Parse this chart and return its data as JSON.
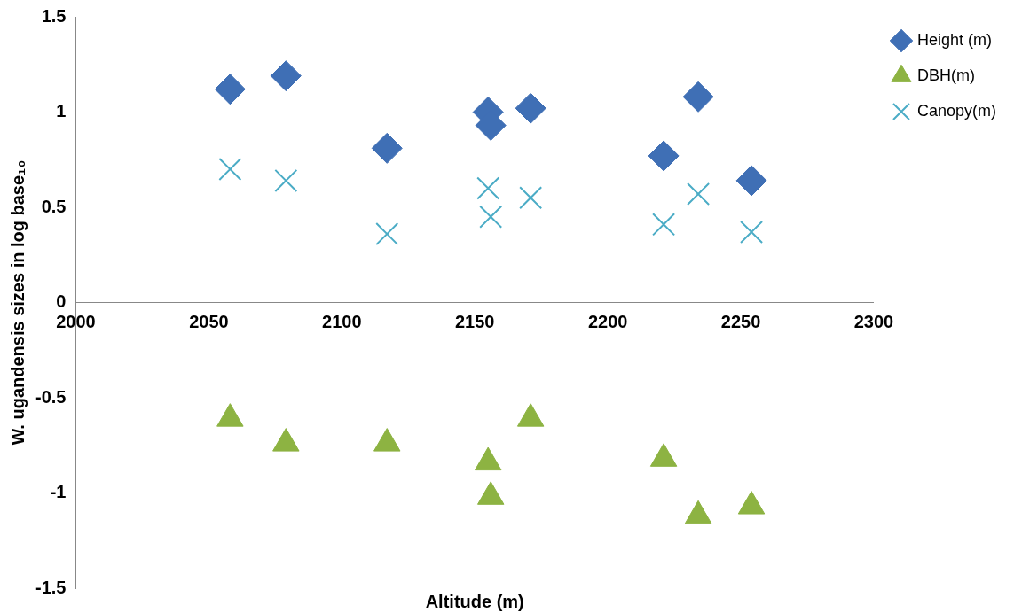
{
  "chart_data": {
    "type": "scatter",
    "xlabel": "Altitude (m)",
    "ylabel": "W. ugandensis sizes in log base₁₀",
    "xlim": [
      2000,
      2300
    ],
    "xticks": [
      2000,
      2050,
      2100,
      2150,
      2200,
      2250,
      2300
    ],
    "ylim": [
      -1.5,
      1.5
    ],
    "yticks": [
      -1.5,
      -1,
      -0.5,
      0,
      0.5,
      1,
      1.5
    ],
    "grid": false,
    "legend": "top right",
    "series": [
      {
        "name": "Height (m)",
        "color": "#3f6fb5",
        "marker": "diamond",
        "x": [
          2058,
          2079,
          2117,
          2155,
          2156,
          2171,
          2221,
          2234,
          2254
        ],
        "values": [
          1.12,
          1.19,
          0.81,
          1.0,
          0.93,
          1.02,
          0.77,
          1.08,
          0.64
        ]
      },
      {
        "name": "DBH(m)",
        "color": "#8db342",
        "marker": "triangle",
        "x": [
          2058,
          2079,
          2117,
          2155,
          2156,
          2171,
          2221,
          2234,
          2254
        ],
        "values": [
          -0.61,
          -0.74,
          -0.74,
          -0.84,
          -1.02,
          -0.61,
          -0.82,
          -1.12,
          -1.07
        ]
      },
      {
        "name": "Canopy(m)",
        "color": "#4bacc6",
        "marker": "cross",
        "x": [
          2058,
          2079,
          2117,
          2155,
          2156,
          2171,
          2221,
          2234,
          2254
        ],
        "values": [
          0.7,
          0.64,
          0.36,
          0.6,
          0.45,
          0.55,
          0.41,
          0.57,
          0.37
        ]
      }
    ]
  }
}
